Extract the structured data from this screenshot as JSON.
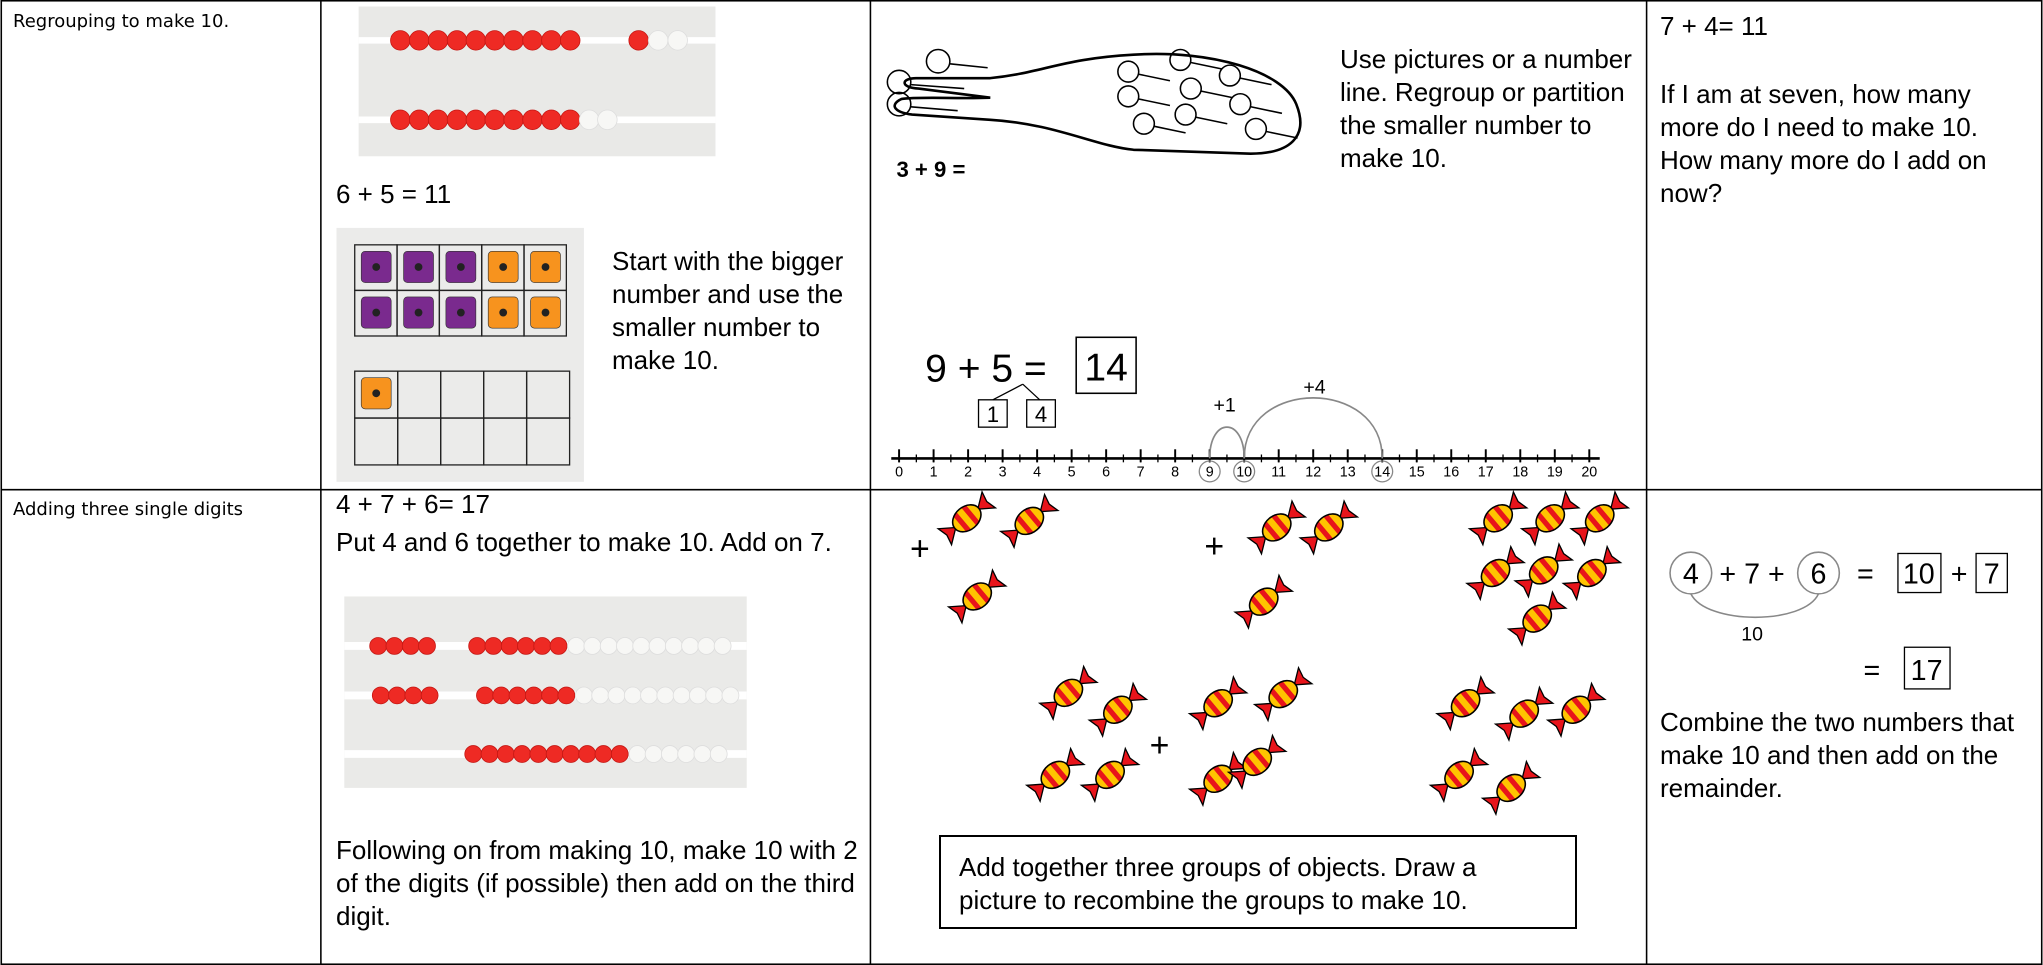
{
  "table": {
    "rows": [
      {
        "topic": "Regrouping to make 10.",
        "concrete": {
          "equation": "6 + 5 = 11",
          "note": "Start with the bigger number and use the smaller number to make 10."
        },
        "pictorial": {
          "note": "Use pictures or a number line. Regroup or partition the smaller number to make 10.",
          "picture_label": "3 + 9 =",
          "sum": "9 + 5 =",
          "answer": "14",
          "parts": [
            "1",
            "4"
          ],
          "jumps": [
            "+1",
            "+4"
          ],
          "number_line": [
            "0",
            "1",
            "2",
            "3",
            "4",
            "5",
            "6",
            "7",
            "8",
            "9",
            "10",
            "11",
            "12",
            "13",
            "14",
            "15",
            "16",
            "17",
            "18",
            "19",
            "20"
          ]
        },
        "abstract": {
          "equation": "7 + 4= 11",
          "note": "If I am at seven, how many more do I need to make 10. How many more do I add on now?"
        }
      },
      {
        "topic": "Adding three single digits",
        "concrete": {
          "equation": "4 + 7 + 6= 17",
          "note": "Put 4 and 6 together to make 10. Add on 7.",
          "note2": "Following on from making 10, make 10 with 2 of the digits (if possible) then add on the third digit."
        },
        "pictorial": {
          "plus_signs": [
            "+",
            "+",
            "+"
          ],
          "caption": "Add together three groups of objects. Draw a picture to recombine the groups to make 10."
        },
        "abstract": {
          "terms": [
            "4",
            "+ 7 +",
            "6",
            "=",
            "10",
            "+",
            "7"
          ],
          "bracket": "10",
          "equals": "=",
          "total": "17",
          "note": "Combine the two numbers that make 10 and then add on the remainder."
        }
      }
    ]
  }
}
